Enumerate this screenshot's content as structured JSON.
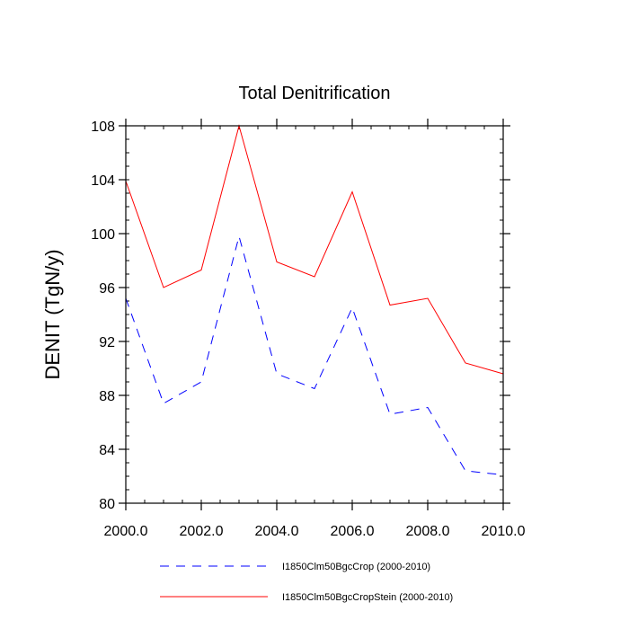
{
  "chart_data": {
    "type": "line",
    "title": "Total Denitrification",
    "xlabel": "",
    "ylabel": "DENIT  (TgN/y)",
    "xlim": [
      2000,
      2010
    ],
    "ylim": [
      80,
      108
    ],
    "x_ticks": [
      2000,
      2002,
      2004,
      2006,
      2008,
      2010
    ],
    "x_tick_labels": [
      "2000.0",
      "2002.0",
      "2004.0",
      "2006.0",
      "2008.0",
      "2010.0"
    ],
    "y_ticks": [
      80,
      84,
      88,
      92,
      96,
      100,
      104,
      108
    ],
    "y_tick_labels": [
      "80",
      "84",
      "88",
      "92",
      "96",
      "100",
      "104",
      "108"
    ],
    "grid": false,
    "legend_position": "bottom",
    "x": [
      2000,
      2001,
      2002,
      2003,
      2004,
      2005,
      2006,
      2007,
      2008,
      2009,
      2010
    ],
    "series": [
      {
        "name": "I1850Clm50BgcCrop (2000-2010)",
        "color": "#0000ff",
        "line_style": "dashed",
        "values": [
          95.2,
          87.4,
          89.0,
          99.8,
          89.6,
          88.5,
          94.5,
          86.6,
          87.1,
          82.4,
          82.1
        ]
      },
      {
        "name": "I1850Clm50BgcCropStein (2000-2010)",
        "color": "#ff0000",
        "line_style": "solid",
        "values": [
          103.9,
          96.0,
          97.3,
          108.0,
          97.9,
          96.8,
          103.1,
          94.7,
          95.2,
          90.4,
          89.6
        ]
      }
    ]
  }
}
